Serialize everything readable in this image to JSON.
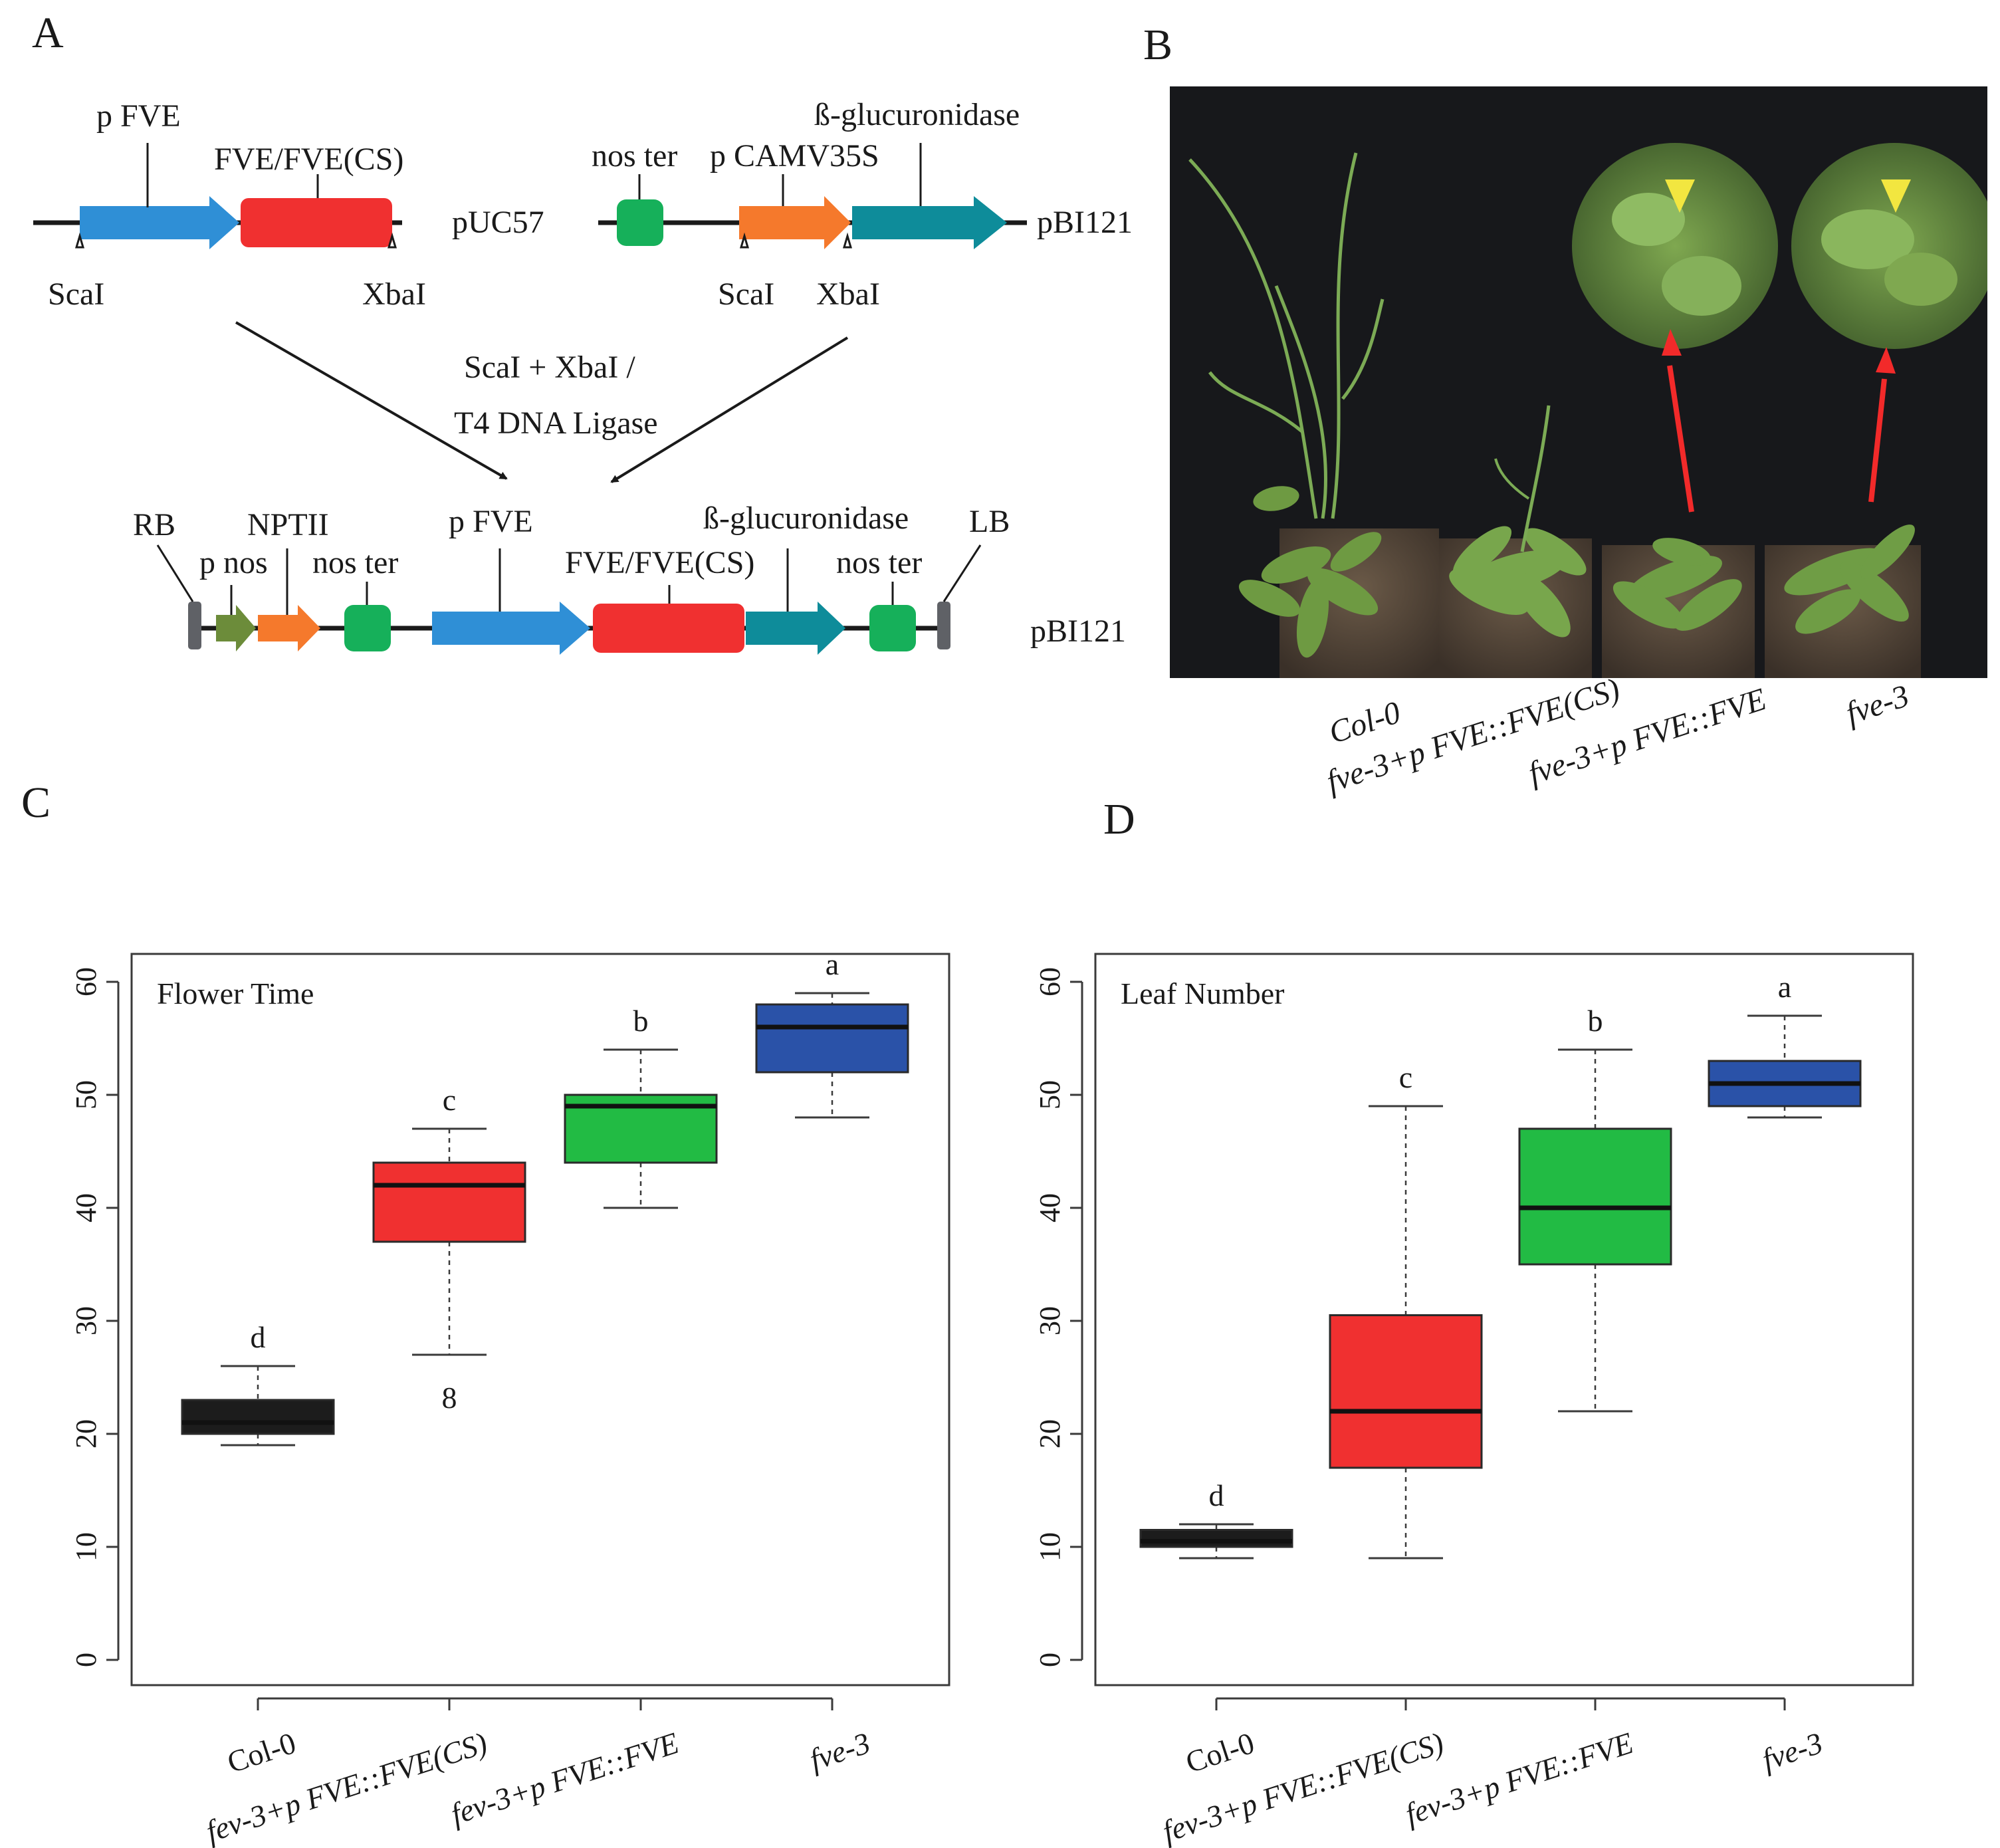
{
  "panels": {
    "a": "A",
    "b": "B",
    "c": "C",
    "d": "D"
  },
  "panel_a": {
    "construct1": {
      "promoter": "p FVE",
      "gene": "FVE/FVE(CS)",
      "vector": "pUC57",
      "site_left": "ScaI",
      "site_right": "XbaI"
    },
    "construct2": {
      "terminator": "nos ter",
      "promoter": "p CAMV35S",
      "reporter": "ß-glucuronidase",
      "vector": "pBI121",
      "site_left": "ScaI",
      "site_right": "XbaI"
    },
    "reaction": {
      "line1": "ScaI + XbaI /",
      "line2": "T4 DNA Ligase"
    },
    "final": {
      "rb": "RB",
      "nptii": "NPTII",
      "pnos": "p nos",
      "noster1": "nos ter",
      "pfve": "p FVE",
      "gene": "FVE/FVE(CS)",
      "reporter": "ß-glucuronidase",
      "noster2": "nos ter",
      "lb": "LB",
      "vector": "pBI121"
    }
  },
  "panel_b": {
    "genotypes": [
      "Col-0",
      "fve-3+p FVE::FVE(CS)",
      "fve-3+p FVE::FVE",
      "fve-3"
    ]
  },
  "chart_data": [
    {
      "type": "box",
      "title": "Flower Time",
      "categories": [
        "Col-0",
        "fev-3+p FVE::FVE(CS)",
        "fev-3+p FVE::FVE",
        "fve-3"
      ],
      "ylim": [
        0,
        60
      ],
      "yticks": [
        0,
        10,
        20,
        30,
        40,
        50,
        60
      ],
      "boxes": [
        {
          "min": 19,
          "q1": 20,
          "median": 21,
          "q3": 23,
          "max": 26,
          "color": "#1c1c1c",
          "letter": "d"
        },
        {
          "min": 27,
          "q1": 37,
          "median": 42,
          "q3": 44,
          "max": 47,
          "color": "#f03030",
          "letter": "c",
          "outlier": 8
        },
        {
          "min": 40,
          "q1": 44,
          "median": 49,
          "q3": 50,
          "max": 54,
          "color": "#22bb44",
          "letter": "b"
        },
        {
          "min": 48,
          "q1": 52,
          "median": 56,
          "q3": 58,
          "max": 59,
          "color": "#2a52a8",
          "letter": "a"
        }
      ]
    },
    {
      "type": "box",
      "title": "Leaf Number",
      "categories": [
        "Col-0",
        "fev-3+p FVE::FVE(CS)",
        "fev-3+p FVE::FVE",
        "fve-3"
      ],
      "ylim": [
        0,
        60
      ],
      "yticks": [
        0,
        10,
        20,
        30,
        40,
        50,
        60
      ],
      "boxes": [
        {
          "min": 9,
          "q1": 10,
          "median": 10.5,
          "q3": 11.5,
          "max": 12,
          "color": "#1c1c1c",
          "letter": "d"
        },
        {
          "min": 9,
          "q1": 17,
          "median": 22,
          "q3": 30.5,
          "max": 49,
          "color": "#f03030",
          "letter": "c"
        },
        {
          "min": 22,
          "q1": 35,
          "median": 40,
          "q3": 47,
          "max": 54,
          "color": "#22bb44",
          "letter": "b"
        },
        {
          "min": 48,
          "q1": 49,
          "median": 51,
          "q3": 53,
          "max": 57,
          "color": "#2a52a8",
          "letter": "a"
        }
      ]
    }
  ]
}
